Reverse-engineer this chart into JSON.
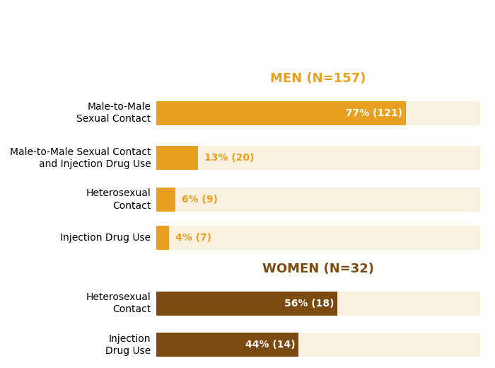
{
  "title_men": "MEN (N=157)",
  "title_women": "WOMEN (N=32)",
  "title_color_men": "#E8A020",
  "title_color_women": "#7B4A10",
  "bg_color": "#FFFFFF",
  "bar_bg_color": "#FAF0E0",
  "men_bar_color": "#E8A020",
  "women_bar_color": "#7B4A10",
  "men_categories": [
    "Male-to-Male\nSexual Contact",
    "Male-to-Male Sexual Contact\nand Injection Drug Use",
    "Heterosexual\nContact",
    "Injection Drug Use"
  ],
  "men_values": [
    77,
    13,
    6,
    4
  ],
  "men_labels": [
    "77% (121)",
    "13% (20)",
    "6% (9)",
    "4% (7)"
  ],
  "men_label_inside": [
    true,
    false,
    false,
    false
  ],
  "women_categories": [
    "Heterosexual\nContact",
    "Injection\nDrug Use"
  ],
  "women_values": [
    56,
    44
  ],
  "women_labels": [
    "56% (18)",
    "44% (14)"
  ],
  "women_label_inside": [
    true,
    true
  ],
  "label_fontsize": 10,
  "title_fontsize": 13,
  "cat_fontsize": 10
}
